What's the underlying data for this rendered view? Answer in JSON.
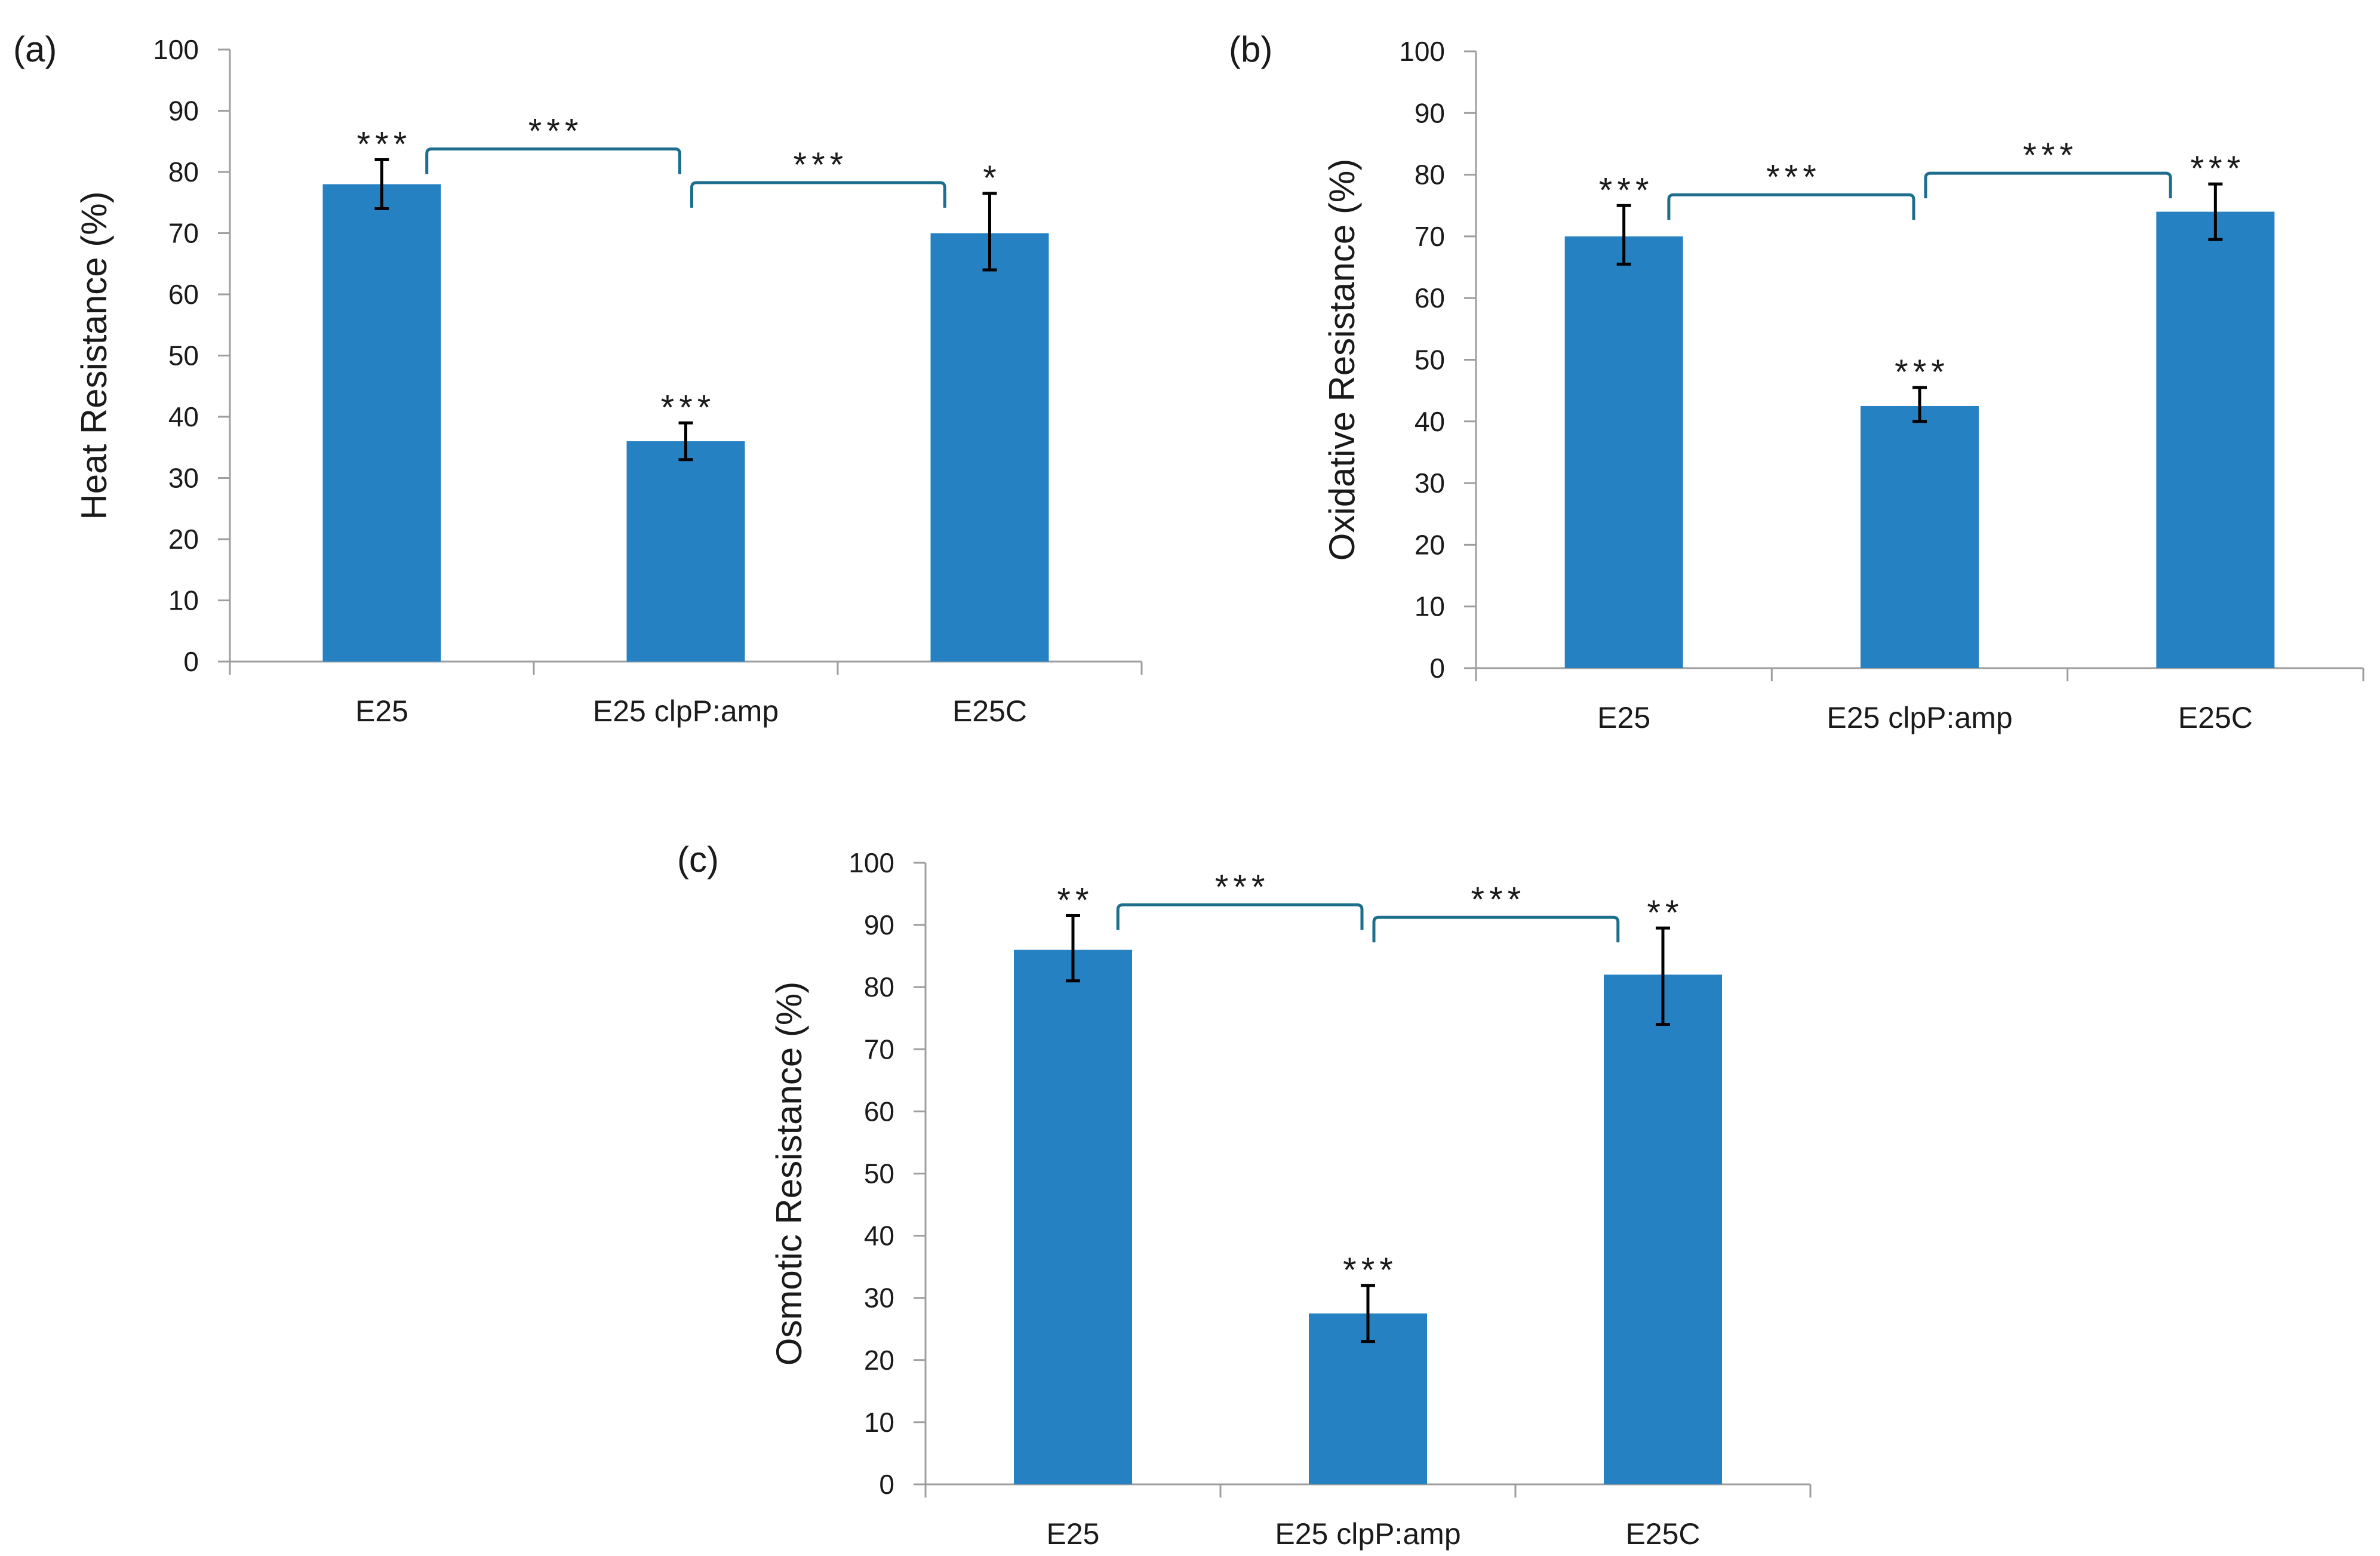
{
  "colors": {
    "bar": "#2681C3",
    "bracket": "#1C6E8C",
    "axis": "#9E9E9E"
  },
  "chart_data": [
    {
      "type": "bar",
      "panel_label": "(a)",
      "categories": [
        "E25",
        "E25 clpP:amp",
        "E25C"
      ],
      "values": [
        78,
        36,
        70
      ],
      "error_low": [
        74,
        33,
        64
      ],
      "error_high": [
        82,
        39,
        76.5
      ],
      "significance": [
        "***",
        "***",
        "*"
      ],
      "comparisons": [
        {
          "from": 0,
          "to": 1,
          "label": "***"
        },
        {
          "from": 1,
          "to": 2,
          "label": "***"
        }
      ],
      "ylabel": "Heat Resistance (%)",
      "xlabel": "",
      "ylim": [
        0,
        100
      ],
      "yticks": [
        0,
        10,
        20,
        30,
        40,
        50,
        60,
        70,
        80,
        90,
        100
      ]
    },
    {
      "type": "bar",
      "panel_label": "(b)",
      "categories": [
        "E25",
        "E25 clpP:amp",
        "E25C"
      ],
      "values": [
        70,
        42.5,
        74
      ],
      "error_low": [
        65.5,
        40,
        69.5
      ],
      "error_high": [
        75,
        45.5,
        78.5
      ],
      "significance": [
        "***",
        "***",
        "***"
      ],
      "comparisons": [
        {
          "from": 0,
          "to": 1,
          "label": "***"
        },
        {
          "from": 1,
          "to": 2,
          "label": "***"
        }
      ],
      "ylabel": "Oxidative Resistance (%)",
      "xlabel": "",
      "ylim": [
        0,
        100
      ],
      "yticks": [
        0,
        10,
        20,
        30,
        40,
        50,
        60,
        70,
        80,
        90,
        100
      ]
    },
    {
      "type": "bar",
      "panel_label": "(c)",
      "categories": [
        "E25",
        "E25 clpP:amp",
        "E25C"
      ],
      "values": [
        86,
        27.5,
        82
      ],
      "error_low": [
        81,
        23,
        74
      ],
      "error_high": [
        91.5,
        32,
        89.5
      ],
      "significance": [
        "**",
        "***",
        "**"
      ],
      "comparisons": [
        {
          "from": 0,
          "to": 1,
          "label": "***"
        },
        {
          "from": 1,
          "to": 2,
          "label": "***"
        }
      ],
      "ylabel": "Osmotic Resistance (%)",
      "xlabel": "",
      "ylim": [
        0,
        100
      ],
      "yticks": [
        0,
        10,
        20,
        30,
        40,
        50,
        60,
        70,
        80,
        90,
        100
      ]
    }
  ]
}
